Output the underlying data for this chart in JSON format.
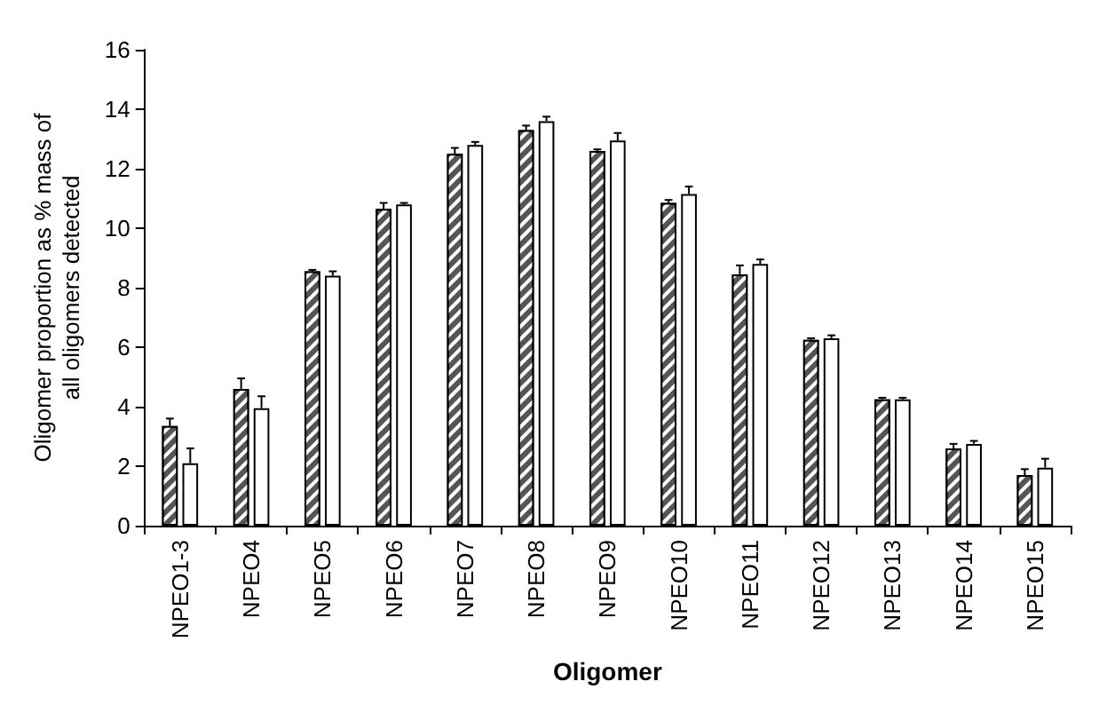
{
  "chart_data": {
    "type": "bar",
    "xlabel": "Oligomer",
    "ylabel": "Oligomer proportion as % mass of\nall oligomers detected",
    "categories": [
      "NPEO1-3",
      "NPEO4",
      "NPEO5",
      "NPEO6",
      "NPEO7",
      "NPEO8",
      "NPEO9",
      "NPEO10",
      "NPEO11",
      "NPEO12",
      "NPEO13",
      "NPEO14",
      "NPEO15"
    ],
    "series": [
      {
        "color": "#555555",
        "values": [
          3.35,
          4.6,
          8.55,
          10.65,
          12.5,
          13.3,
          12.6,
          10.85,
          8.45,
          6.25,
          4.25,
          2.6,
          1.7
        ],
        "errors": [
          [
            3.35,
            3.6
          ],
          [
            4.6,
            4.95
          ],
          [
            8.55,
            8.6
          ],
          [
            10.65,
            10.85
          ],
          [
            12.5,
            12.7
          ],
          [
            13.3,
            13.45
          ],
          [
            12.6,
            12.65
          ],
          [
            10.85,
            10.95
          ],
          [
            8.45,
            8.75
          ],
          [
            6.25,
            6.3
          ],
          [
            4.25,
            4.3
          ],
          [
            2.6,
            2.75
          ],
          [
            1.7,
            1.9
          ]
        ]
      },
      {
        "color": "#ffffff",
        "values": [
          2.1,
          3.95,
          8.4,
          10.8,
          12.8,
          13.6,
          12.95,
          11.15,
          8.8,
          6.3,
          4.25,
          2.75,
          1.95
        ],
        "errors": [
          [
            2.1,
            2.6
          ],
          [
            3.95,
            4.35
          ],
          [
            8.4,
            8.55
          ],
          [
            10.8,
            10.85
          ],
          [
            12.8,
            12.9
          ],
          [
            13.6,
            13.75
          ],
          [
            12.95,
            13.2
          ],
          [
            11.15,
            11.4
          ],
          [
            8.8,
            8.95
          ],
          [
            6.3,
            6.4
          ],
          [
            4.25,
            4.3
          ],
          [
            2.75,
            2.85
          ],
          [
            1.95,
            2.25
          ]
        ]
      }
    ],
    "ylim": [
      0,
      16
    ],
    "yticks": [
      0,
      2,
      4,
      6,
      8,
      10,
      12,
      14,
      16
    ],
    "grid": false
  }
}
